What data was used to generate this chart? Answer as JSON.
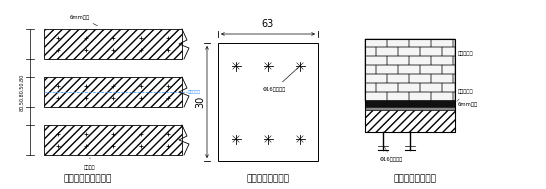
{
  "bg_color": "#ffffff",
  "lc": "#000000",
  "blue_color": "#4499ff",
  "title1": "拱腹粘贴钢板展开图",
  "title2": "钢板构造图（一）",
  "title3": "钢板构造图（二）",
  "label_6mm_top": "6mm钢板",
  "label_anchor_bot": "箱固螺栓",
  "label_screw": "Φ16箱面螺栓",
  "label_dim63": "63",
  "label_dim30": "30",
  "label_dims_left": "80.50.80.50.80",
  "label_axis": "拱腹中轴线",
  "label_stone": "拱腹碎石石",
  "label_resin": "环氧树脂浆",
  "label_steel": "6mm钢板",
  "label_anchor2": "Φ16锚固螺栓"
}
